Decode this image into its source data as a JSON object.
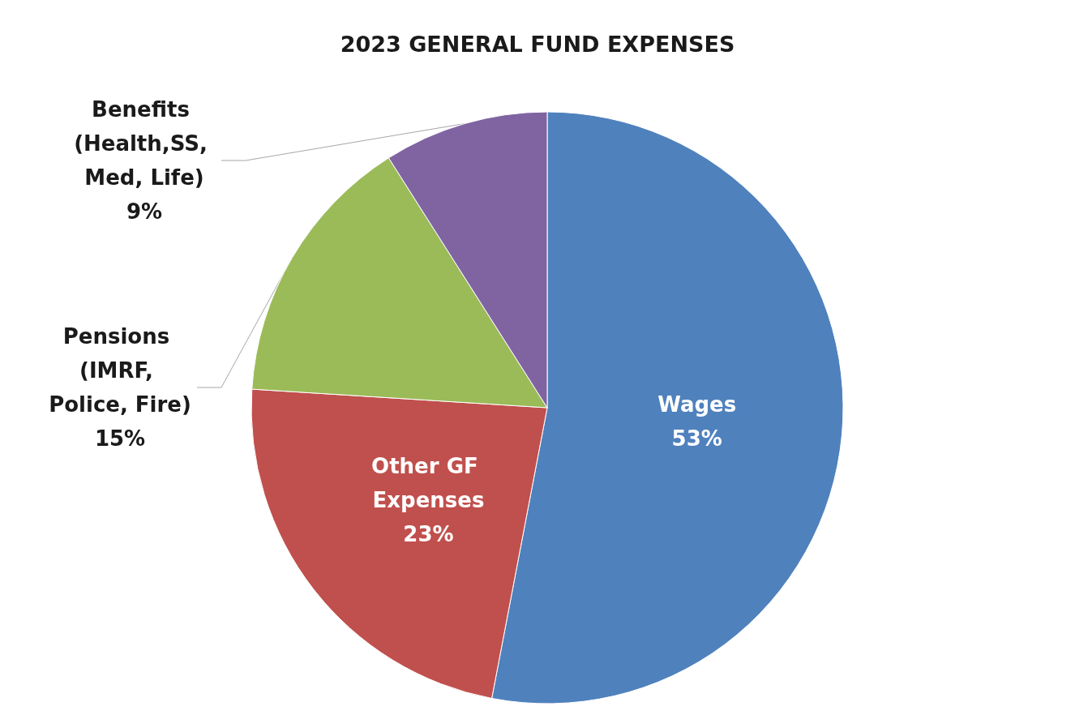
{
  "chart_data": {
    "type": "pie",
    "title": "2023 GENERAL FUND EXPENSES",
    "categories": [
      "Wages",
      "Other GF Expenses",
      "Pensions (IMRF, Police, Fire)",
      "Benefits (Health,SS, Med, Life)"
    ],
    "values": [
      53,
      23,
      15,
      9
    ],
    "value_labels": [
      "53%",
      "23%",
      "15%",
      "9%"
    ],
    "colors": [
      "#4f81bd",
      "#c0504d",
      "#9bbb59",
      "#8064a2"
    ],
    "legend": false
  }
}
